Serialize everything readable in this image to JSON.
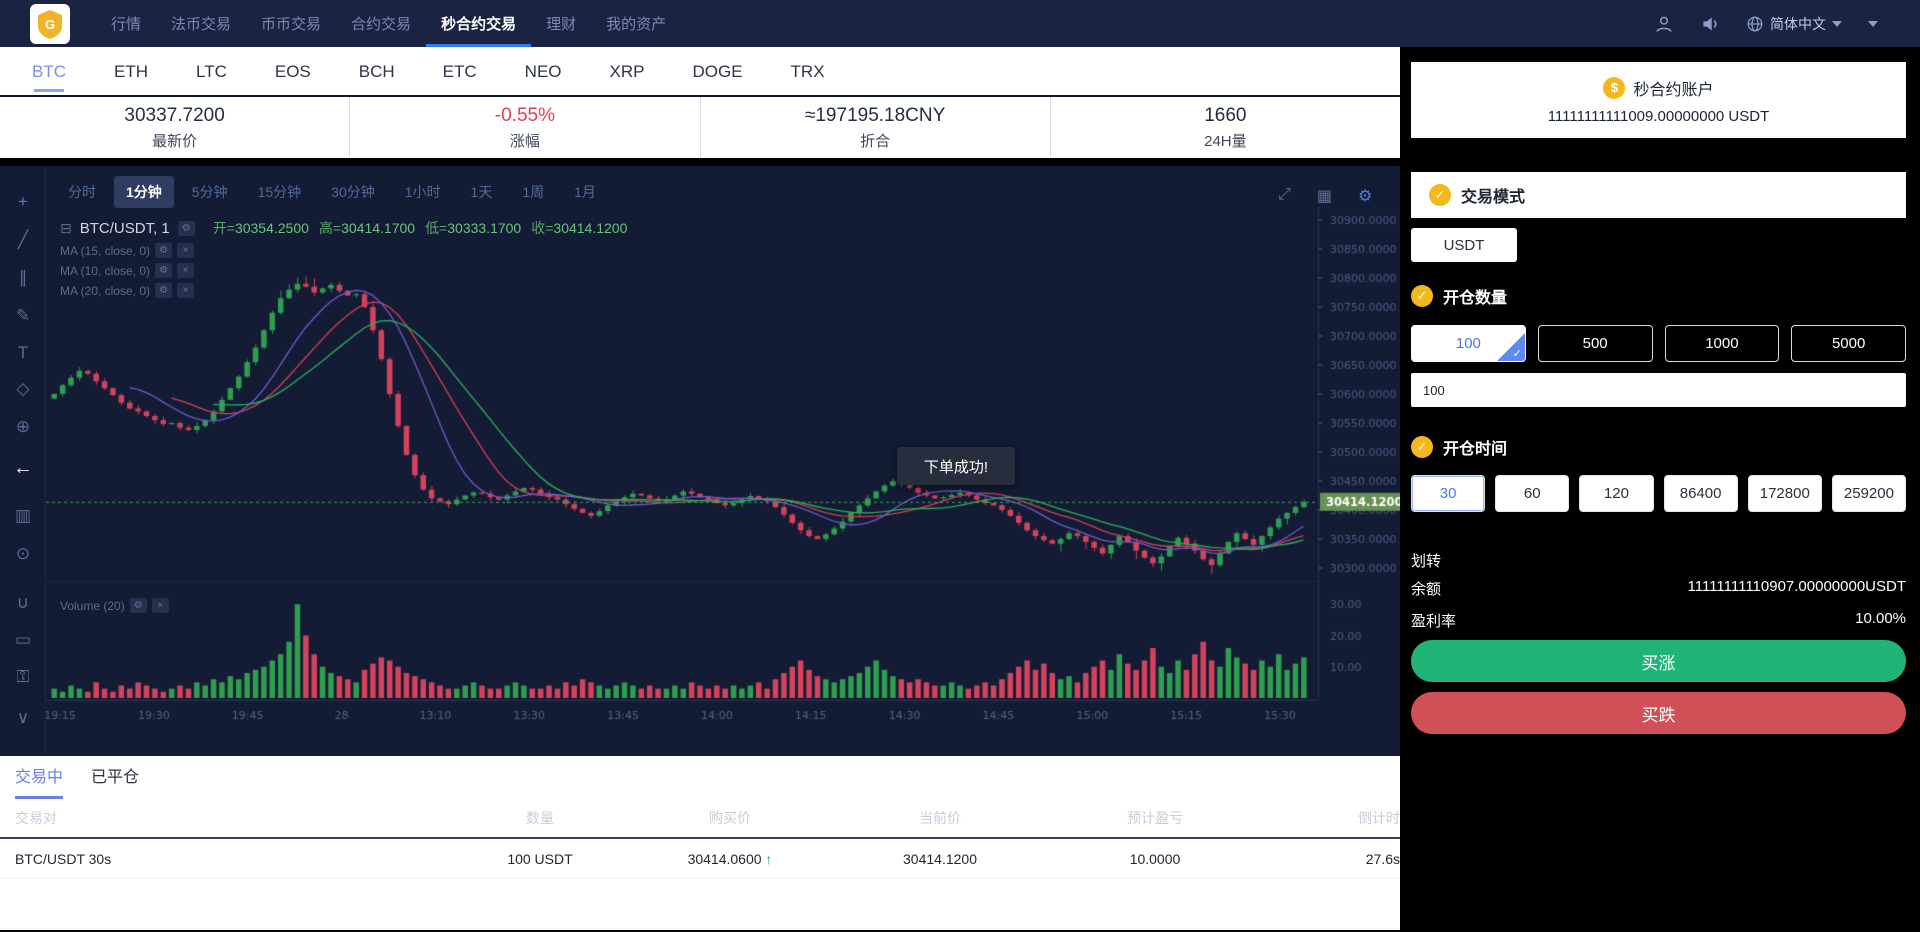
{
  "navbar": {
    "menu": [
      {
        "label": "行情",
        "active": false
      },
      {
        "label": "法币交易",
        "active": false
      },
      {
        "label": "币币交易",
        "active": false
      },
      {
        "label": "合约交易",
        "active": false
      },
      {
        "label": "秒合约交易",
        "active": true
      },
      {
        "label": "理财",
        "active": false
      },
      {
        "label": "我的资产",
        "active": false
      }
    ],
    "language": "简体中文"
  },
  "market_tabs": [
    "BTC",
    "ETH",
    "LTC",
    "EOS",
    "BCH",
    "ETC",
    "NEO",
    "XRP",
    "DOGE",
    "TRX"
  ],
  "market_tabs_active": 0,
  "ticker": [
    {
      "value": "30337.7200",
      "label": "最新价",
      "style": "normal"
    },
    {
      "value": "-0.55%",
      "label": "涨幅",
      "style": "red"
    },
    {
      "value": "≈197195.18CNY",
      "label": "折合",
      "style": "normal"
    },
    {
      "value": "1660",
      "label": "24H量",
      "style": "normal"
    }
  ],
  "chart": {
    "timeframes": [
      "分时",
      "1分钟",
      "5分钟",
      "15分钟",
      "30分钟",
      "1小时",
      "1天",
      "1周",
      "1月"
    ],
    "timeframe_active": 1,
    "symbol_text": "BTC/USDT, 1",
    "ohlc": [
      {
        "k": "开",
        "v": "30354.2500"
      },
      {
        "k": "高",
        "v": "30414.1700"
      },
      {
        "k": "低",
        "v": "30333.1700"
      },
      {
        "k": "收",
        "v": "30414.1200"
      }
    ],
    "ma_rows": [
      "MA (15, close, 0)",
      "MA (10, close, 0)",
      "MA (20, close, 0)"
    ],
    "volume_label": "Volume (20)",
    "toast": "下单成功!",
    "price_tag": "30414.1200",
    "toolbar_icons": [
      {
        "name": "crosshair-icon",
        "glyph": "+",
        "cls": "accent"
      },
      {
        "name": "trend-line-icon",
        "glyph": "╱",
        "cls": ""
      },
      {
        "name": "channel-icon",
        "glyph": "∥",
        "cls": ""
      },
      {
        "name": "brush-icon",
        "glyph": "✎",
        "cls": ""
      },
      {
        "name": "text-tool-icon",
        "glyph": "T",
        "cls": ""
      },
      {
        "name": "pattern-icon",
        "glyph": "◇",
        "cls": ""
      },
      {
        "name": "forecast-icon",
        "glyph": "⊕",
        "cls": ""
      },
      {
        "name": "back-arrow-icon",
        "glyph": "←",
        "cls": "bright"
      },
      {
        "name": "histogram-icon",
        "glyph": "▥",
        "cls": ""
      },
      {
        "name": "zoom-in-icon",
        "glyph": "⊙",
        "cls": ""
      },
      {
        "name": "magnet-icon",
        "glyph": "∪",
        "cls": ""
      },
      {
        "name": "measure-icon",
        "glyph": "▭",
        "cls": ""
      },
      {
        "name": "lock-icon",
        "glyph": "⚿",
        "cls": ""
      },
      {
        "name": "collapse-icon",
        "glyph": "∨",
        "cls": ""
      }
    ],
    "top_icons": [
      {
        "name": "fullscreen-icon",
        "glyph": "⤢",
        "cls": ""
      },
      {
        "name": "indicator-icon",
        "glyph": "▦",
        "cls": ""
      },
      {
        "name": "settings-icon",
        "glyph": "⚙",
        "cls": "accent"
      }
    ]
  },
  "chart_data": {
    "type": "candlestick",
    "symbol": "BTC/USDT",
    "interval": "1m",
    "ylim": [
      30300,
      30900
    ],
    "y_axis_labels": [
      "30900.0000",
      "30850.0000",
      "30800.0000",
      "30750.0000",
      "30700.0000",
      "30650.0000",
      "30600.0000",
      "30550.0000",
      "30500.0000",
      "30450.0000",
      "30400.0000",
      "30350.0000",
      "30300.0000"
    ],
    "volume_axis_labels": [
      "30.00",
      "20.00",
      "10.00"
    ],
    "x_labels": [
      "19:15",
      "19:30",
      "19:45",
      "28",
      "13:10",
      "13:30",
      "13:45",
      "14:00",
      "14:15",
      "14:30",
      "14:45",
      "15:00",
      "15:15",
      "15:30"
    ],
    "price_line": 30414.12,
    "ma_periods": [
      15,
      10,
      20
    ],
    "ma_colors": [
      "#d43f55",
      "#6f5bd0",
      "#2fae60"
    ],
    "closes": [
      30600,
      30615,
      30628,
      30640,
      30635,
      30622,
      30610,
      30598,
      30585,
      30575,
      30570,
      30562,
      30555,
      30548,
      30550,
      30542,
      30538,
      30545,
      30555,
      30570,
      30590,
      30610,
      30630,
      30655,
      30680,
      30710,
      30740,
      30765,
      30780,
      30790,
      30785,
      30775,
      30782,
      30788,
      30778,
      30770,
      30772,
      30750,
      30710,
      30660,
      30600,
      30545,
      30495,
      30460,
      30435,
      30420,
      30415,
      30410,
      30418,
      30425,
      30430,
      30428,
      30422,
      30418,
      30425,
      30432,
      30438,
      30435,
      30428,
      30422,
      30418,
      30410,
      30402,
      30395,
      30390,
      30398,
      30408,
      30415,
      30422,
      30428,
      30425,
      30420,
      30415,
      30418,
      30425,
      30432,
      30428,
      30422,
      30418,
      30412,
      30408,
      30412,
      30418,
      30424,
      30420,
      30415,
      30405,
      30392,
      30378,
      30365,
      30355,
      30350,
      30358,
      30368,
      30380,
      30395,
      30408,
      30420,
      30432,
      30442,
      30450,
      30445,
      30438,
      30430,
      30425,
      30420,
      30422,
      30426,
      30430,
      30425,
      30418,
      30412,
      30408,
      30400,
      30390,
      30378,
      30365,
      30355,
      30348,
      30342,
      30350,
      30360,
      30355,
      30345,
      30335,
      30325,
      30340,
      30355,
      30345,
      30330,
      30318,
      30308,
      30320,
      30338,
      30352,
      30342,
      30330,
      30315,
      30305,
      30325,
      30345,
      30360,
      30350,
      30340,
      30355,
      30370,
      30385,
      30395,
      30405,
      30414
    ],
    "volumes": [
      3,
      2,
      4,
      3,
      2,
      5,
      3,
      2,
      4,
      3,
      5,
      4,
      3,
      2,
      3,
      4,
      3,
      5,
      4,
      6,
      5,
      7,
      6,
      8,
      9,
      10,
      12,
      14,
      18,
      30,
      20,
      14,
      10,
      8,
      7,
      6,
      5,
      9,
      11,
      13,
      12,
      10,
      8,
      7,
      6,
      5,
      4,
      3,
      3,
      4,
      5,
      4,
      3,
      3,
      4,
      5,
      4,
      3,
      3,
      4,
      3,
      5,
      4,
      6,
      5,
      4,
      3,
      4,
      5,
      4,
      3,
      4,
      3,
      3,
      4,
      3,
      5,
      4,
      3,
      4,
      3,
      4,
      3,
      4,
      5,
      3,
      6,
      8,
      10,
      12,
      9,
      7,
      6,
      5,
      6,
      7,
      8,
      10,
      12,
      9,
      7,
      6,
      5,
      6,
      5,
      4,
      4,
      5,
      4,
      3,
      4,
      5,
      4,
      6,
      8,
      10,
      12,
      9,
      11,
      8,
      6,
      7,
      5,
      8,
      10,
      12,
      9,
      14,
      11,
      9,
      12,
      16,
      10,
      8,
      12,
      9,
      14,
      18,
      12,
      10,
      16,
      13,
      11,
      9,
      12,
      10,
      14,
      9,
      11,
      13
    ]
  },
  "positions": {
    "tabs": [
      {
        "label": "交易中",
        "active": true
      },
      {
        "label": "已平仓",
        "active": false
      }
    ],
    "columns": [
      "交易对",
      "数量",
      "购买价",
      "当前价",
      "预计盈亏",
      "倒计时"
    ],
    "rows": [
      {
        "pair": "BTC/USDT 30s",
        "amount": "100 USDT",
        "buy_price": "30414.0600",
        "buy_dir": "up",
        "cur_price": "30414.1200",
        "pnl": "10.0000",
        "countdown": "27.6s"
      }
    ]
  },
  "trade_panel": {
    "account_label": "秒合约账户",
    "account_balance": "11111111111009.00000000 USDT",
    "mode_label": "交易模式",
    "currency": "USDT",
    "qty_label": "开仓数量",
    "amount_options": [
      "100",
      "500",
      "1000",
      "5000"
    ],
    "amount_selected": 0,
    "amount_input": "100",
    "time_label": "开仓时间",
    "time_options": [
      "30",
      "60",
      "120",
      "86400",
      "172800",
      "259200"
    ],
    "time_selected": 0,
    "transfer_label": "划转",
    "balance_label": "余额",
    "balance_value": "11111111110907.00000000USDT",
    "rate_label": "盈利率",
    "rate_value": "10.00%",
    "buy_up_label": "买涨",
    "buy_down_label": "买跌"
  },
  "colors": {
    "accent_blue": "#3478f6",
    "gold": "#f3b91c",
    "candle_up": "#2f9e4f",
    "candle_down": "#d4425c",
    "price_tag_bg": "#669257",
    "buy_up": "#21b478",
    "buy_down": "#cf5057"
  }
}
